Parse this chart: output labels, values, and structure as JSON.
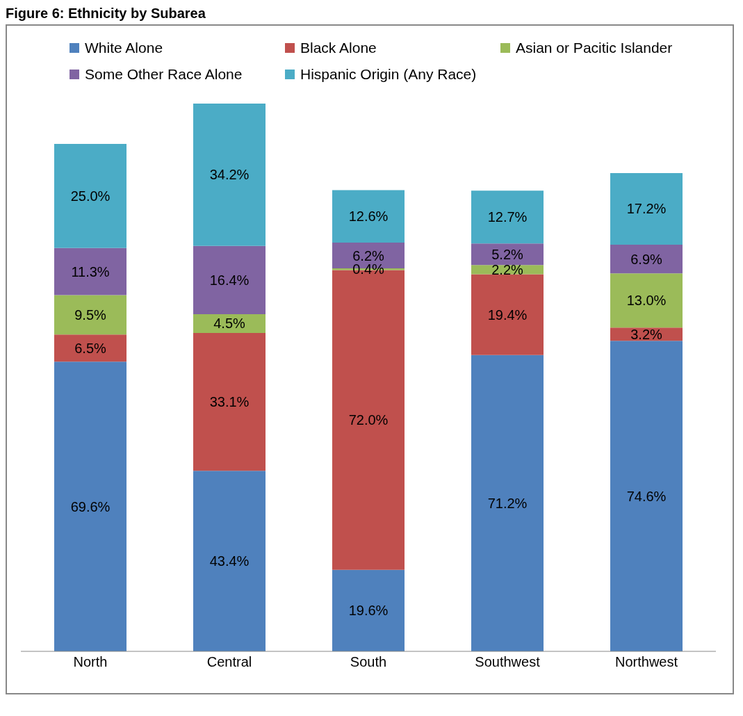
{
  "chart_data": {
    "type": "bar",
    "title": "Figure 6: Ethnicity by Subarea",
    "stacked": true,
    "legend": "top",
    "categories": [
      "North",
      "Central",
      "South",
      "Southwest",
      "Northwest"
    ],
    "series": [
      {
        "name": "White Alone",
        "color": "#4f81bd",
        "values": [
          69.6,
          43.4,
          19.6,
          71.2,
          74.6
        ],
        "value_labels": [
          "69.6%",
          "43.4%",
          "19.6%",
          "71.2%",
          "74.6%"
        ]
      },
      {
        "name": "Black Alone",
        "color": "#c0504d",
        "values": [
          6.5,
          33.1,
          72.0,
          19.4,
          3.2
        ],
        "value_labels": [
          "6.5%",
          "33.1%",
          "72.0%",
          "19.4%",
          "3.2%"
        ]
      },
      {
        "name": "Asian or Pacitic Islander",
        "color": "#9bbb59",
        "values": [
          9.5,
          4.5,
          0.4,
          2.2,
          13.0
        ],
        "value_labels": [
          "9.5%",
          "4.5%",
          "0.4%",
          "2.2%",
          "13.0%"
        ]
      },
      {
        "name": "Some Other Race Alone",
        "color": "#8064a2",
        "values": [
          11.3,
          16.4,
          6.2,
          5.2,
          6.9
        ],
        "value_labels": [
          "11.3%",
          "16.4%",
          "6.2%",
          "5.2%",
          "6.9%"
        ]
      },
      {
        "name": "Hispanic Origin (Any Race)",
        "color": "#4bacc6",
        "values": [
          25.0,
          34.2,
          12.6,
          12.7,
          17.2
        ],
        "value_labels": [
          "25.0%",
          "34.2%",
          "12.6%",
          "12.7%",
          "17.2%"
        ]
      }
    ]
  }
}
